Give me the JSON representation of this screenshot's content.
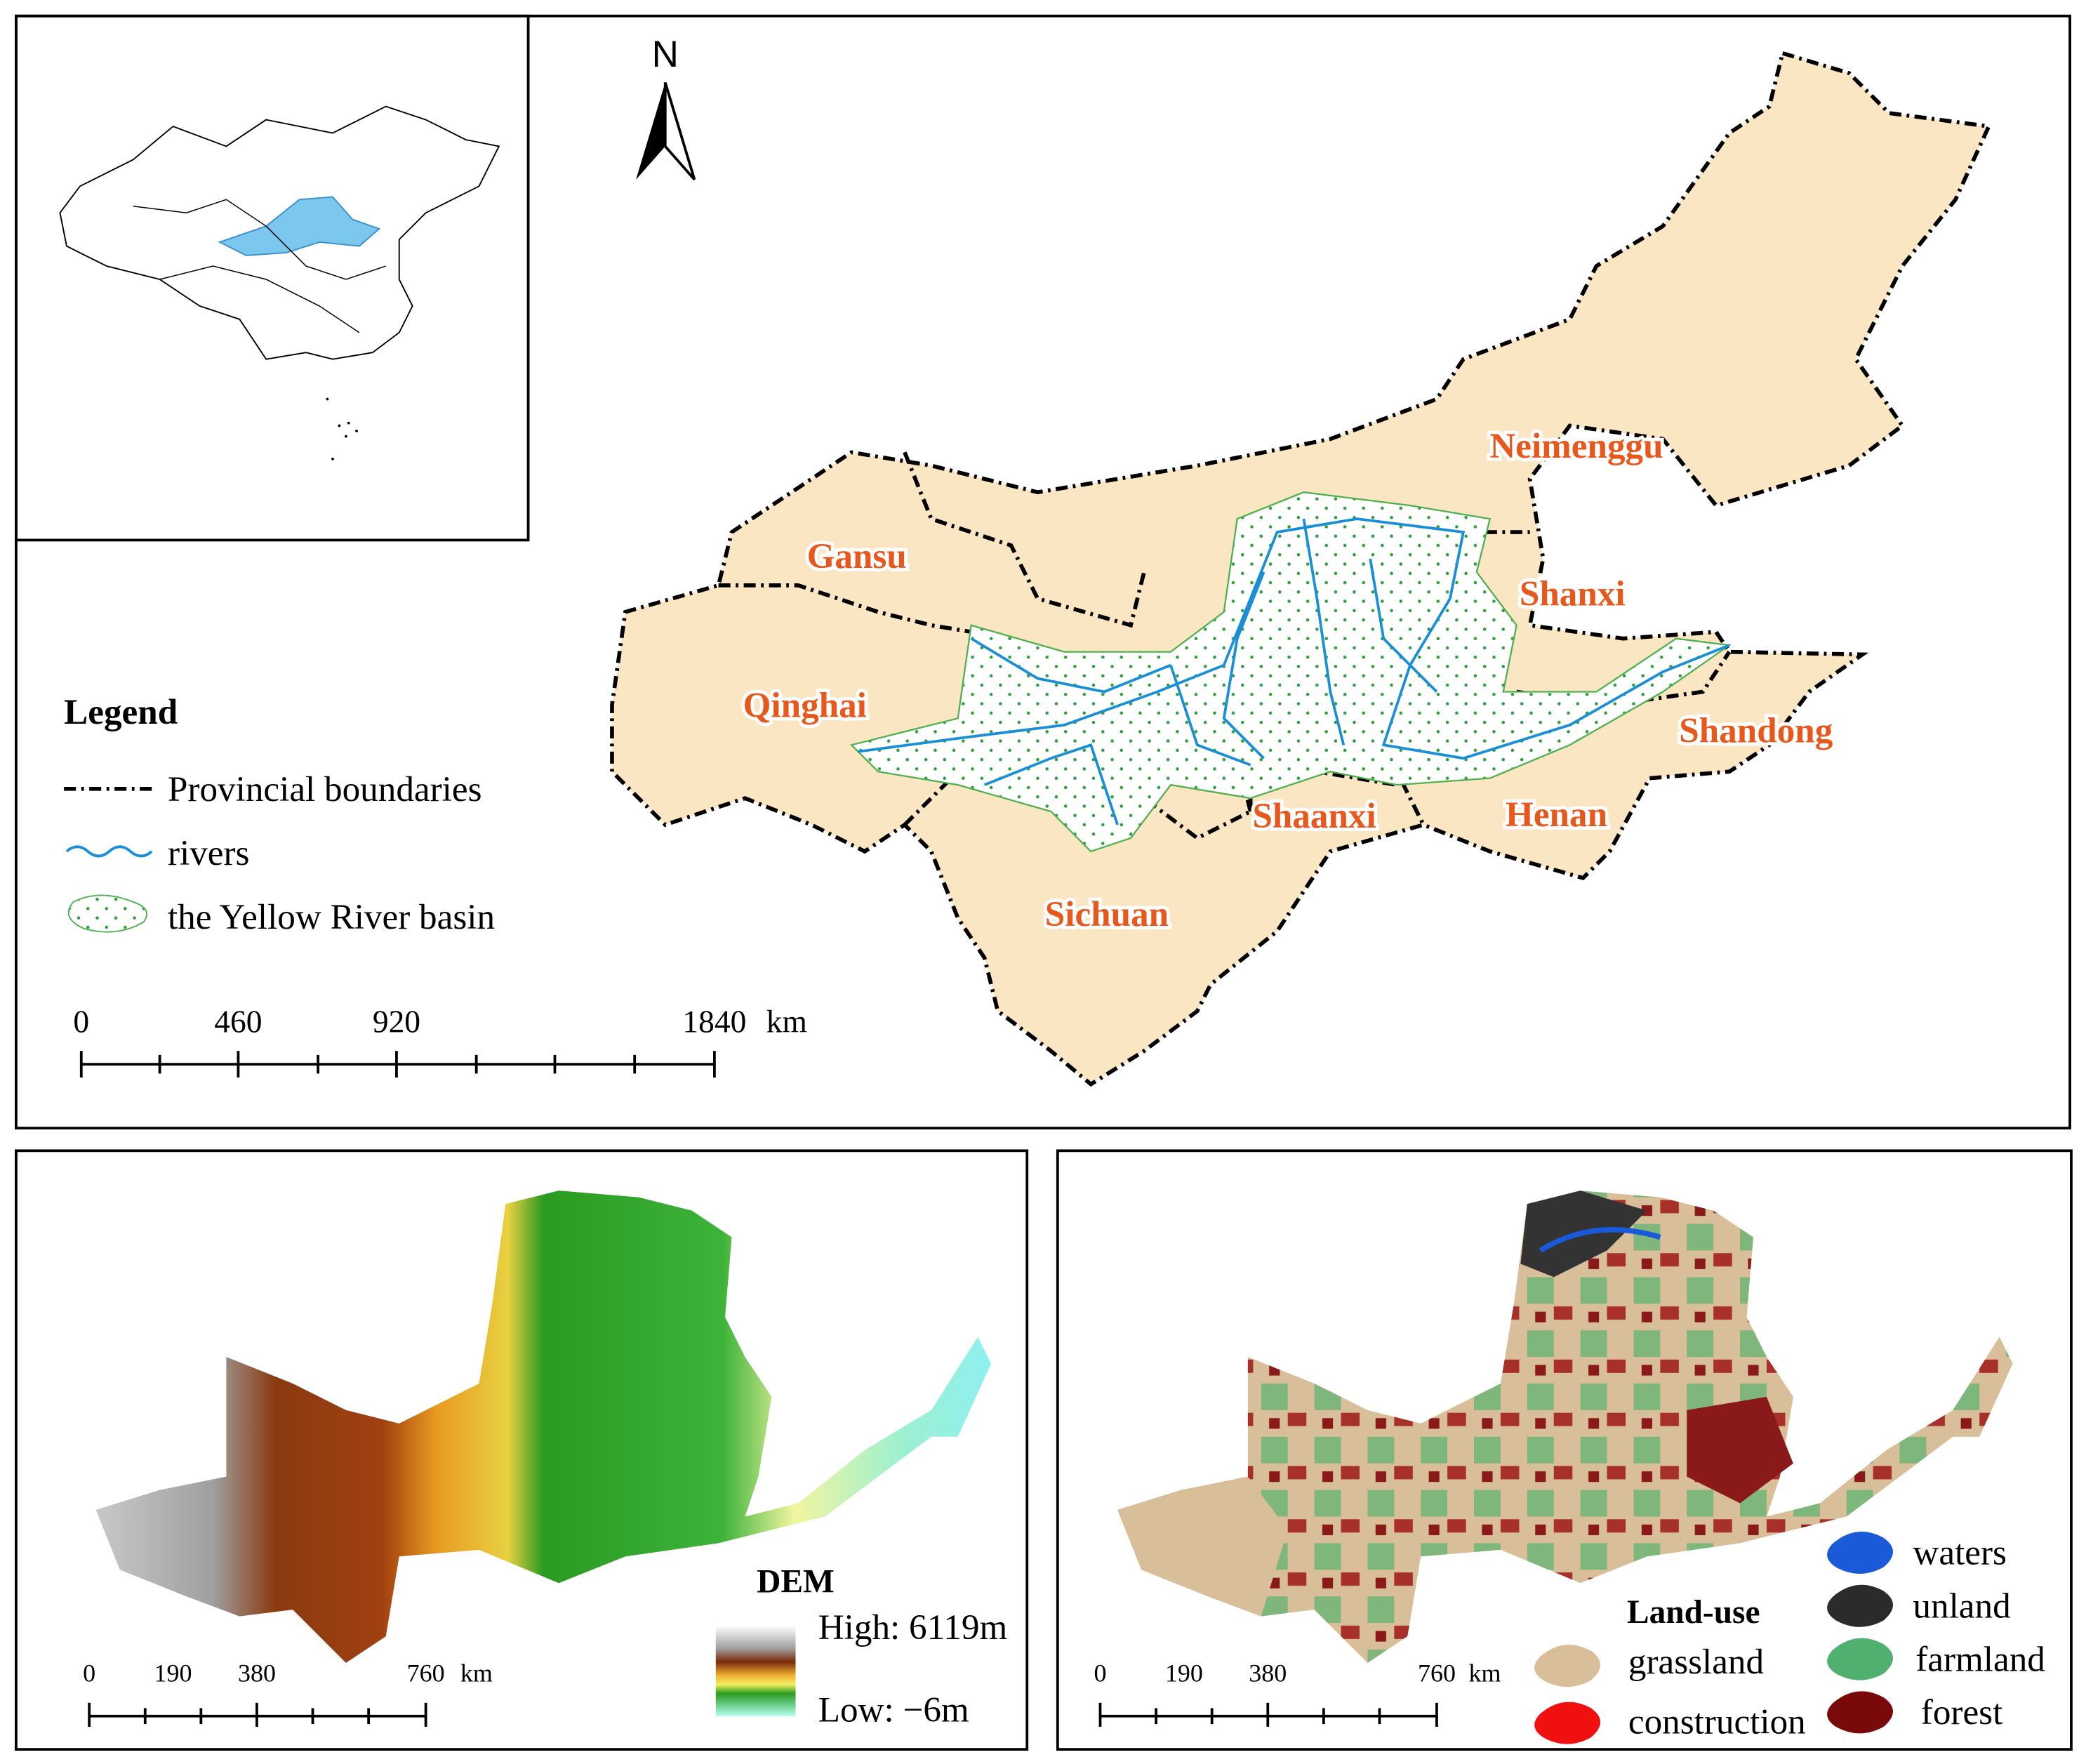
{
  "north_arrow": "N",
  "main_map": {
    "provinces": [
      "Neimenggu",
      "Gansu",
      "Shanxi",
      "Qinghai",
      "Shandong",
      "Shaanxi",
      "Henan",
      "Sichuan"
    ],
    "legend": {
      "title": "Legend",
      "items": [
        "Provincial boundaries",
        "rivers",
        "the Yellow River basin"
      ]
    },
    "scale_bar": {
      "labels": [
        "0",
        "460",
        "920",
        "1840"
      ],
      "unit": "km"
    }
  },
  "dem_map": {
    "legend": {
      "title": "DEM",
      "high": "High: 6119m",
      "low": "Low: −6m"
    },
    "scale_bar": {
      "labels": [
        "0",
        "190",
        "380",
        "760"
      ],
      "unit": "km"
    }
  },
  "landuse_map": {
    "legend": {
      "title": "Land-use",
      "items": [
        "waters",
        "unland",
        "grassland",
        "construction",
        "farmland",
        "forest"
      ]
    },
    "scale_bar": {
      "labels": [
        "0",
        "190",
        "380",
        "760"
      ],
      "unit": "km"
    }
  }
}
